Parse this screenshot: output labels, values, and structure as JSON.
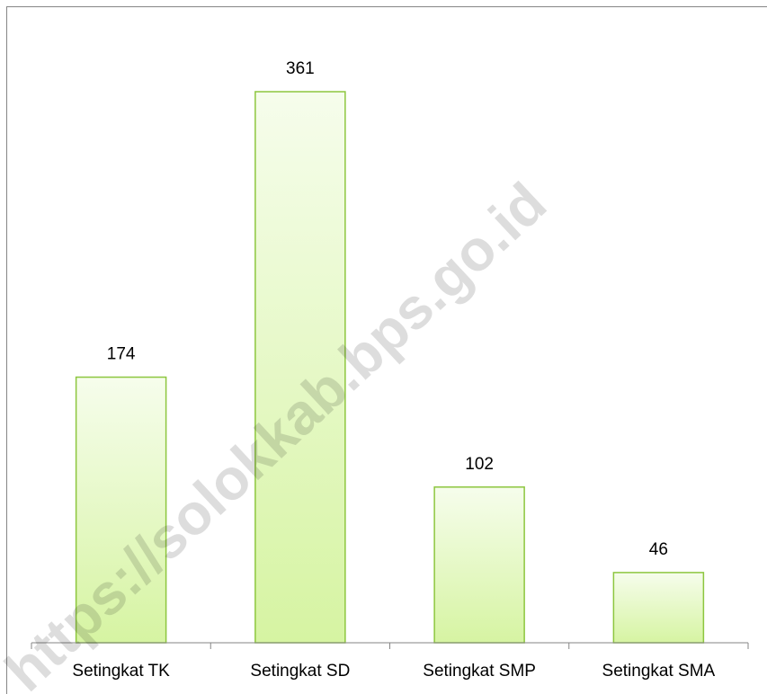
{
  "chart_data": {
    "type": "bar",
    "categories": [
      "Setingkat TK",
      "Setingkat SD",
      "Setingkat SMP",
      "Setingkat SMA"
    ],
    "values": [
      174,
      361,
      102,
      46
    ],
    "color": "#8dc63f",
    "watermark": "https://solokkab.bps.go.id"
  }
}
